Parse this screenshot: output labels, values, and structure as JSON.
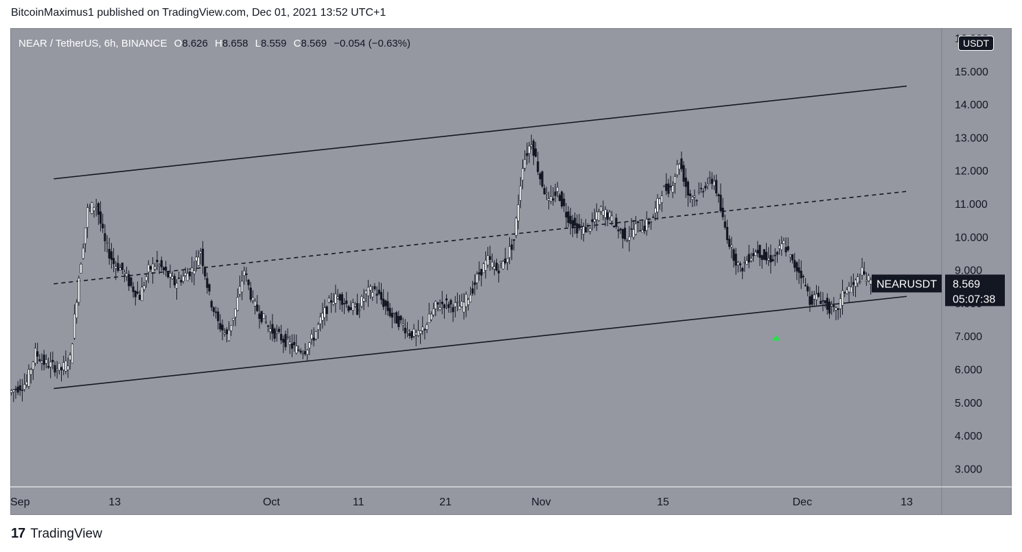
{
  "header": {
    "text": "BitcoinMaximus1 published on TradingView.com, Dec 01, 2021 13:52 UTC+1"
  },
  "legend": {
    "symbol": "NEAR / TetherUS, 6h, BINANCE",
    "o_label": "O",
    "o": "8.626",
    "h_label": "H",
    "h": "8.658",
    "l_label": "L",
    "l": "8.559",
    "c_label": "C",
    "c": "8.569",
    "change": "−0.054 (−0.63%)"
  },
  "currency": "USDT",
  "footer": {
    "brand": "TradingView"
  },
  "colors": {
    "background": "#9598a1",
    "candle": "#131722",
    "arrow": "#26e04a",
    "label_bg": "#131722"
  },
  "chart_data": {
    "type": "candlestick",
    "symbol": "NEARUSDT",
    "y_ticks": [
      "3.000",
      "4.000",
      "5.000",
      "6.000",
      "7.000",
      "8.000",
      "9.000",
      "10.000",
      "11.000",
      "12.000",
      "13.000",
      "14.000",
      "15.000"
    ],
    "y_top_tick_partial": "16.000",
    "x_ticks": [
      {
        "label": "Sep",
        "date": "2021-09-01"
      },
      {
        "label": "13",
        "date": "2021-09-13"
      },
      {
        "label": "Oct",
        "date": "2021-10-01"
      },
      {
        "label": "11",
        "date": "2021-10-11"
      },
      {
        "label": "21",
        "date": "2021-10-21"
      },
      {
        "label": "Nov",
        "date": "2021-11-01"
      },
      {
        "label": "15",
        "date": "2021-11-15"
      },
      {
        "label": "Dec",
        "date": "2021-12-01"
      },
      {
        "label": "13",
        "date": "2021-12-13"
      }
    ],
    "y_range": [
      2.45,
      16.3
    ],
    "x_range": [
      "2021-09-01",
      "2021-12-13"
    ],
    "last": {
      "label": "NEARUSDT",
      "value": "8.569",
      "countdown": "05:07:38"
    },
    "channel": {
      "upper": [
        {
          "date": "2021-09-06",
          "value": 11.75
        },
        {
          "date": "2021-12-13",
          "value": 14.55
        }
      ],
      "middle": [
        {
          "date": "2021-09-06",
          "value": 8.58
        },
        {
          "date": "2021-12-13",
          "value": 11.37
        }
      ],
      "lower": [
        {
          "date": "2021-09-06",
          "value": 5.42
        },
        {
          "date": "2021-12-13",
          "value": 8.2
        }
      ]
    },
    "marker": {
      "type": "arrow-up",
      "date": "2021-11-28",
      "value": 6.95
    },
    "series": [
      {
        "date": "2021-09-01",
        "value": 5.3
      },
      {
        "date": "2021-09-02",
        "value": 5.45
      },
      {
        "date": "2021-09-03",
        "value": 5.6
      },
      {
        "date": "2021-09-04",
        "value": 6.5
      },
      {
        "date": "2021-09-05",
        "value": 6.2
      },
      {
        "date": "2021-09-06",
        "value": 6.1
      },
      {
        "date": "2021-09-07",
        "value": 6.0
      },
      {
        "date": "2021-09-08",
        "value": 6.3
      },
      {
        "date": "2021-09-09",
        "value": 8.8
      },
      {
        "date": "2021-09-10",
        "value": 10.8
      },
      {
        "date": "2021-09-11",
        "value": 11.0
      },
      {
        "date": "2021-09-12",
        "value": 9.8
      },
      {
        "date": "2021-09-13",
        "value": 9.2
      },
      {
        "date": "2021-09-14",
        "value": 9.0
      },
      {
        "date": "2021-09-15",
        "value": 8.5
      },
      {
        "date": "2021-09-16",
        "value": 8.2
      },
      {
        "date": "2021-09-17",
        "value": 9.0
      },
      {
        "date": "2021-09-18",
        "value": 9.2
      },
      {
        "date": "2021-09-19",
        "value": 8.9
      },
      {
        "date": "2021-09-20",
        "value": 8.6
      },
      {
        "date": "2021-09-21",
        "value": 8.8
      },
      {
        "date": "2021-09-22",
        "value": 9.0
      },
      {
        "date": "2021-09-23",
        "value": 9.6
      },
      {
        "date": "2021-09-24",
        "value": 8.2
      },
      {
        "date": "2021-09-25",
        "value": 7.4
      },
      {
        "date": "2021-09-26",
        "value": 7.0
      },
      {
        "date": "2021-09-27",
        "value": 7.8
      },
      {
        "date": "2021-09-28",
        "value": 9.0
      },
      {
        "date": "2021-09-29",
        "value": 8.0
      },
      {
        "date": "2021-09-30",
        "value": 7.6
      },
      {
        "date": "2021-10-01",
        "value": 7.2
      },
      {
        "date": "2021-10-02",
        "value": 7.0
      },
      {
        "date": "2021-10-03",
        "value": 6.8
      },
      {
        "date": "2021-10-04",
        "value": 6.6
      },
      {
        "date": "2021-10-05",
        "value": 6.6
      },
      {
        "date": "2021-10-06",
        "value": 7.0
      },
      {
        "date": "2021-10-07",
        "value": 7.6
      },
      {
        "date": "2021-10-08",
        "value": 8.1
      },
      {
        "date": "2021-10-09",
        "value": 8.2
      },
      {
        "date": "2021-10-10",
        "value": 7.9
      },
      {
        "date": "2021-10-11",
        "value": 7.8
      },
      {
        "date": "2021-10-12",
        "value": 8.3
      },
      {
        "date": "2021-10-13",
        "value": 8.4
      },
      {
        "date": "2021-10-14",
        "value": 8.0
      },
      {
        "date": "2021-10-15",
        "value": 7.6
      },
      {
        "date": "2021-10-16",
        "value": 7.4
      },
      {
        "date": "2021-10-17",
        "value": 7.1
      },
      {
        "date": "2021-10-18",
        "value": 7.0
      },
      {
        "date": "2021-10-19",
        "value": 7.4
      },
      {
        "date": "2021-10-20",
        "value": 7.9
      },
      {
        "date": "2021-10-21",
        "value": 8.0
      },
      {
        "date": "2021-10-22",
        "value": 7.9
      },
      {
        "date": "2021-10-23",
        "value": 7.9
      },
      {
        "date": "2021-10-24",
        "value": 8.3
      },
      {
        "date": "2021-10-25",
        "value": 8.9
      },
      {
        "date": "2021-10-26",
        "value": 9.3
      },
      {
        "date": "2021-10-27",
        "value": 9.0
      },
      {
        "date": "2021-10-28",
        "value": 9.3
      },
      {
        "date": "2021-10-29",
        "value": 9.9
      },
      {
        "date": "2021-10-30",
        "value": 12.2
      },
      {
        "date": "2021-10-31",
        "value": 12.9
      },
      {
        "date": "2021-11-01",
        "value": 11.8
      },
      {
        "date": "2021-11-02",
        "value": 11.0
      },
      {
        "date": "2021-11-03",
        "value": 11.4
      },
      {
        "date": "2021-11-04",
        "value": 10.7
      },
      {
        "date": "2021-11-05",
        "value": 10.3
      },
      {
        "date": "2021-11-06",
        "value": 10.2
      },
      {
        "date": "2021-11-07",
        "value": 10.4
      },
      {
        "date": "2021-11-08",
        "value": 10.8
      },
      {
        "date": "2021-11-09",
        "value": 10.6
      },
      {
        "date": "2021-11-10",
        "value": 10.2
      },
      {
        "date": "2021-11-11",
        "value": 10.0
      },
      {
        "date": "2021-11-12",
        "value": 10.3
      },
      {
        "date": "2021-11-13",
        "value": 10.3
      },
      {
        "date": "2021-11-14",
        "value": 10.6
      },
      {
        "date": "2021-11-15",
        "value": 11.4
      },
      {
        "date": "2021-11-16",
        "value": 11.5
      },
      {
        "date": "2021-11-17",
        "value": 12.3
      },
      {
        "date": "2021-11-18",
        "value": 11.3
      },
      {
        "date": "2021-11-19",
        "value": 11.2
      },
      {
        "date": "2021-11-20",
        "value": 11.6
      },
      {
        "date": "2021-11-21",
        "value": 11.7
      },
      {
        "date": "2021-11-22",
        "value": 10.5
      },
      {
        "date": "2021-11-23",
        "value": 9.6
      },
      {
        "date": "2021-11-24",
        "value": 9.0
      },
      {
        "date": "2021-11-25",
        "value": 9.4
      },
      {
        "date": "2021-11-26",
        "value": 9.6
      },
      {
        "date": "2021-11-27",
        "value": 9.3
      },
      {
        "date": "2021-11-28",
        "value": 9.4
      },
      {
        "date": "2021-11-29",
        "value": 9.8
      },
      {
        "date": "2021-11-30",
        "value": 9.2
      },
      {
        "date": "2021-12-01",
        "value": 8.9
      },
      {
        "date": "2021-12-02",
        "value": 8.1
      },
      {
        "date": "2021-12-03",
        "value": 8.2
      },
      {
        "date": "2021-12-04",
        "value": 7.9
      },
      {
        "date": "2021-12-05",
        "value": 7.7
      },
      {
        "date": "2021-12-06",
        "value": 8.4
      },
      {
        "date": "2021-12-07",
        "value": 8.5
      },
      {
        "date": "2021-12-08",
        "value": 8.9
      },
      {
        "date": "2021-12-09",
        "value": 8.6
      }
    ]
  }
}
